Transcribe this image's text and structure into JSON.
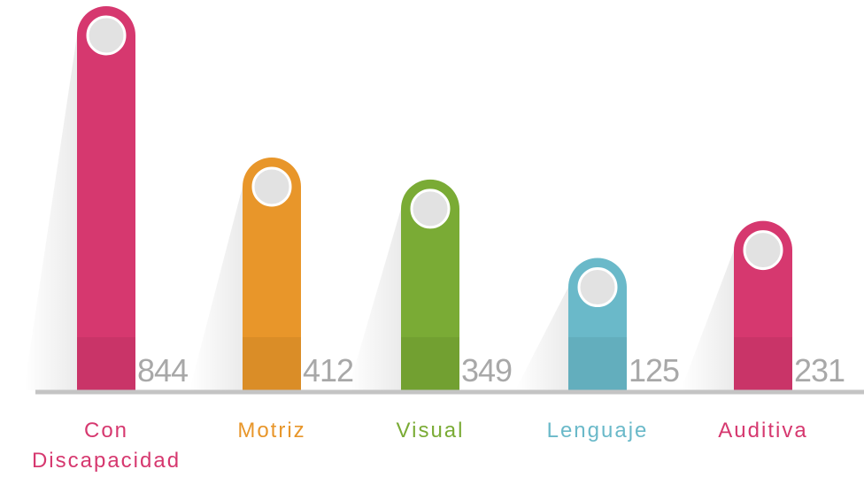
{
  "chart_data": {
    "type": "bar",
    "categories": [
      "Con Discapacidad",
      "Motriz",
      "Visual",
      "Lenguaje",
      "Auditiva"
    ],
    "values": [
      844,
      412,
      349,
      125,
      231
    ],
    "colors": [
      "#d6386f",
      "#e8962a",
      "#7aab35",
      "#6ab9c9",
      "#d6386f"
    ]
  }
}
